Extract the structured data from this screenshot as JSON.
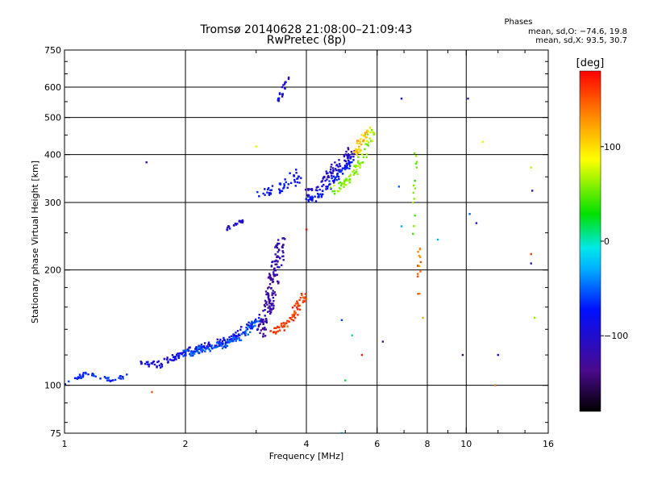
{
  "title": "Tromsø 20140628 21:08:00–21:09:43",
  "subtitle": "RwPretec (8p)",
  "phase_box": {
    "heading": "Phases",
    "line1": "mean, sd,O: −74.6, 19.8",
    "line2": "mean, sd,X:  93.5, 30.7"
  },
  "colorbar": {
    "unit": "[deg]",
    "min": -180,
    "max": 180,
    "ticks": [
      {
        "value": 100,
        "label": "100"
      },
      {
        "value": 0,
        "label": "0"
      },
      {
        "value": -100,
        "label": "−100"
      }
    ]
  },
  "chart_data": {
    "type": "scatter",
    "title": "Tromsø 20140628 21:08:00–21:09:43",
    "subtitle": "RwPretec (8p)",
    "xlabel": "Frequency [MHz]",
    "ylabel": "Stationary phase Virtual Height [km]",
    "xscale": "log",
    "yscale": "log",
    "xlim": [
      1,
      16
    ],
    "ylim": [
      75,
      750
    ],
    "xticks": [
      {
        "value": 1,
        "label": "1"
      },
      {
        "value": 2,
        "label": "2"
      },
      {
        "value": 4,
        "label": "4"
      },
      {
        "value": 6,
        "label": "6"
      },
      {
        "value": 8,
        "label": "8"
      },
      {
        "value": 10,
        "label": "10"
      },
      {
        "value": 16,
        "label": "16"
      }
    ],
    "x_gridlines": [
      2,
      4,
      6,
      8,
      10
    ],
    "x_minor_ticks": [
      3,
      5,
      7,
      9,
      12,
      14
    ],
    "yticks": [
      {
        "value": 75,
        "label": "75"
      },
      {
        "value": 100,
        "label": "100"
      },
      {
        "value": 200,
        "label": "200"
      },
      {
        "value": 300,
        "label": "300"
      },
      {
        "value": 400,
        "label": "400"
      },
      {
        "value": 500,
        "label": "500"
      },
      {
        "value": 600,
        "label": "600"
      },
      {
        "value": 750,
        "label": "750"
      }
    ],
    "y_gridlines": [
      100,
      200,
      300,
      400,
      500,
      600
    ],
    "y_minor_ticks": [
      80,
      90,
      120,
      140,
      160,
      180,
      250,
      350,
      450,
      550,
      650,
      700
    ],
    "grid": true,
    "color_variable": "phase [deg]",
    "clusters": [
      {
        "trace": [
          [
            1.0,
            100
          ],
          [
            1.08,
            104
          ],
          [
            1.15,
            108
          ],
          [
            1.22,
            105
          ],
          [
            1.32,
            103
          ],
          [
            1.42,
            106
          ]
        ],
        "phase": -70,
        "n": 45,
        "spread": 0.012
      },
      {
        "trace": [
          [
            1.55,
            116
          ],
          [
            1.7,
            113
          ],
          [
            1.85,
            117
          ],
          [
            2.0,
            122
          ],
          [
            2.15,
            124
          ],
          [
            2.35,
            128
          ],
          [
            2.55,
            131
          ],
          [
            2.75,
            138
          ],
          [
            2.95,
            146
          ]
        ],
        "phase": -90,
        "n": 150,
        "spread": 0.02
      },
      {
        "trace": [
          [
            2.0,
            121
          ],
          [
            2.2,
            124
          ],
          [
            2.4,
            126
          ],
          [
            2.6,
            130
          ],
          [
            2.85,
            137
          ],
          [
            3.0,
            148
          ]
        ],
        "phase": -55,
        "n": 110,
        "spread": 0.02
      },
      {
        "trace": [
          [
            3.05,
            134
          ],
          [
            3.15,
            150
          ],
          [
            3.25,
            165
          ],
          [
            3.3,
            185
          ],
          [
            3.4,
            210
          ],
          [
            3.45,
            240
          ]
        ],
        "phase": -120,
        "n": 160,
        "spread": 0.03
      },
      {
        "trace": [
          [
            3.3,
            138
          ],
          [
            3.5,
            142
          ],
          [
            3.7,
            152
          ],
          [
            3.85,
            165
          ],
          [
            3.95,
            172
          ]
        ],
        "phase": 160,
        "n": 70,
        "spread": 0.02
      },
      {
        "trace": [
          [
            2.5,
            255
          ],
          [
            2.65,
            262
          ],
          [
            2.8,
            272
          ]
        ],
        "phase": -95,
        "n": 20,
        "spread": 0.01
      },
      {
        "trace": [
          [
            3.1,
            315
          ],
          [
            3.35,
            325
          ],
          [
            3.65,
            340
          ],
          [
            3.9,
            360
          ]
        ],
        "phase": -80,
        "n": 50,
        "spread": 0.03
      },
      {
        "trace": [
          [
            4.0,
            300
          ],
          [
            4.3,
            315
          ],
          [
            4.6,
            335
          ],
          [
            4.9,
            360
          ],
          [
            5.2,
            390
          ]
        ],
        "phase": -75,
        "n": 90,
        "spread": 0.02
      },
      {
        "trace": [
          [
            4.05,
            315
          ],
          [
            4.35,
            340
          ],
          [
            4.65,
            365
          ],
          [
            4.95,
            385
          ],
          [
            5.2,
            410
          ]
        ],
        "phase": -105,
        "n": 70,
        "spread": 0.025
      },
      {
        "trace": [
          [
            4.6,
            320
          ],
          [
            4.9,
            335
          ],
          [
            5.2,
            355
          ],
          [
            5.5,
            390
          ],
          [
            5.7,
            430
          ],
          [
            5.85,
            460
          ]
        ],
        "phase": 60,
        "n": 70,
        "spread": 0.02
      },
      {
        "trace": [
          [
            5.3,
            400
          ],
          [
            5.5,
            440
          ],
          [
            5.7,
            470
          ]
        ],
        "phase": 110,
        "n": 35,
        "spread": 0.02
      },
      {
        "trace": [
          [
            3.4,
            550
          ],
          [
            3.5,
            590
          ],
          [
            3.6,
            640
          ]
        ],
        "phase": -95,
        "n": 22,
        "spread": 0.01
      },
      {
        "trace": [
          [
            7.6,
            160
          ],
          [
            7.62,
            200
          ],
          [
            7.65,
            230
          ]
        ],
        "phase": 140,
        "n": 14,
        "spread": 0.01
      },
      {
        "trace": [
          [
            7.4,
            250
          ],
          [
            7.45,
            330
          ],
          [
            7.5,
            400
          ]
        ],
        "phase": 50,
        "n": 14,
        "spread": 0.01
      }
    ],
    "scatter_points": [
      [
        1.6,
        382,
        -120
      ],
      [
        1.65,
        96,
        150
      ],
      [
        4.0,
        255,
        175
      ],
      [
        3.0,
        420,
        80
      ],
      [
        14.5,
        370,
        70
      ],
      [
        14.6,
        322,
        -130
      ],
      [
        14.5,
        220,
        160
      ],
      [
        14.5,
        208,
        -120
      ],
      [
        11.0,
        432,
        80
      ],
      [
        10.2,
        280,
        -50
      ],
      [
        10.6,
        265,
        -110
      ],
      [
        9.8,
        120,
        -150
      ],
      [
        8.5,
        240,
        -25
      ],
      [
        7.8,
        150,
        120
      ],
      [
        6.9,
        560,
        -80
      ],
      [
        5.0,
        103,
        20
      ],
      [
        4.9,
        148,
        -60
      ],
      [
        5.2,
        135,
        10
      ],
      [
        6.2,
        130,
        -130
      ],
      [
        5.5,
        120,
        170
      ],
      [
        10.1,
        560,
        -120
      ],
      [
        11.8,
        100,
        140
      ],
      [
        6.9,
        260,
        -30
      ],
      [
        6.8,
        330,
        -50
      ],
      [
        12.0,
        120,
        -80
      ],
      [
        14.8,
        150,
        60
      ],
      [
        4.9,
        75,
        -10
      ]
    ]
  }
}
